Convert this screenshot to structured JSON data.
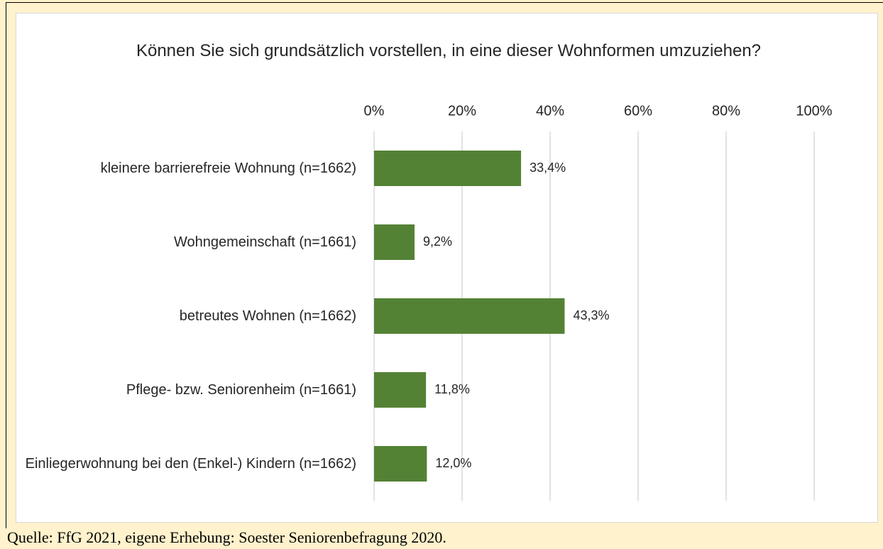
{
  "chart_data": {
    "type": "bar",
    "orientation": "horizontal",
    "title": "Können Sie sich grundsätzlich vorstellen, in eine dieser Wohnformen umzuziehen?",
    "categories": [
      "kleinere barrierefreie Wohnung (n=1662)",
      "Wohngemeinschaft (n=1661)",
      "betreutes Wohnen (n=1662)",
      "Pflege- bzw. Seniorenheim (n=1661)",
      "Einliegerwohnung bei den (Enkel-) Kindern (n=1662)"
    ],
    "values": [
      33.4,
      9.2,
      43.3,
      11.8,
      12.0
    ],
    "value_labels": [
      "33,4%",
      "9,2%",
      "43,3%",
      "11,8%",
      "12,0%"
    ],
    "color": "#548235",
    "xlim": [
      0,
      100
    ],
    "xticks": [
      {
        "value": 0,
        "label": "0%"
      },
      {
        "value": 20,
        "label": "20%"
      },
      {
        "value": 40,
        "label": "40%"
      },
      {
        "value": 60,
        "label": "60%"
      },
      {
        "value": 80,
        "label": "80%"
      },
      {
        "value": 100,
        "label": "100%"
      }
    ],
    "grid": true,
    "source": "Quelle: FfG 2021, eigene Erhebung: Soester Seniorenbefragung 2020."
  }
}
